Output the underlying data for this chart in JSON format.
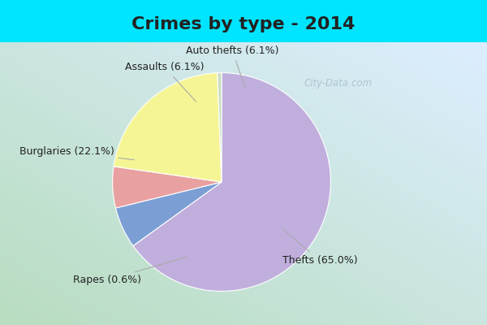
{
  "title": "Crimes by type - 2014",
  "slices": [
    {
      "label": "Thefts (65.0%)",
      "value": 65.0,
      "color": "#c0aedd"
    },
    {
      "label": "Auto thefts (6.1%)",
      "value": 6.1,
      "color": "#7b9fd4"
    },
    {
      "label": "Assaults (6.1%)",
      "value": 6.1,
      "color": "#e8a0a0"
    },
    {
      "label": "Burglaries (22.1%)",
      "value": 22.1,
      "color": "#f5f595"
    },
    {
      "label": "Rapes (0.6%)",
      "value": 0.6,
      "color": "#c8ddc0"
    }
  ],
  "title_fontsize": 16,
  "title_color": "#222222",
  "label_fontsize": 9,
  "banner_color": "#00e5ff",
  "bg_color_left": "#b8ddc0",
  "bg_color_right": "#ddeeff",
  "watermark": "City-Data.com",
  "startangle": 90
}
